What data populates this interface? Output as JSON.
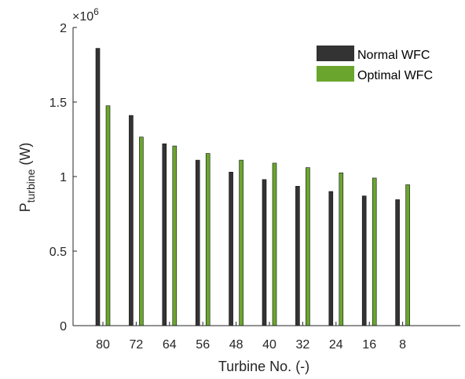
{
  "chart_data": {
    "type": "bar",
    "title": "",
    "xlabel": "Turbine No. (-)",
    "ylabel_main": "P",
    "ylabel_sub": "turbine",
    "ylabel_unit": " (W)",
    "y_multiplier_base": "×10",
    "y_multiplier_exp": "6",
    "ylim": [
      0,
      2000000
    ],
    "yticks": [
      0,
      500000,
      1000000,
      1500000,
      2000000
    ],
    "ytick_labels": [
      "0",
      "0.5",
      "1",
      "1.5",
      "2"
    ],
    "categories": [
      "80",
      "72",
      "64",
      "56",
      "48",
      "40",
      "32",
      "24",
      "16",
      "8"
    ],
    "grid": false,
    "legend_position": "top-right",
    "series": [
      {
        "name": "Normal WFC",
        "color": "#333333",
        "values": [
          1860000,
          1410000,
          1220000,
          1110000,
          1030000,
          980000,
          935000,
          900000,
          870000,
          845000
        ]
      },
      {
        "name": "Optimal WFC",
        "color": "#6aa62e",
        "values": [
          1475000,
          1265000,
          1205000,
          1155000,
          1110000,
          1090000,
          1060000,
          1025000,
          990000,
          945000
        ]
      }
    ]
  }
}
